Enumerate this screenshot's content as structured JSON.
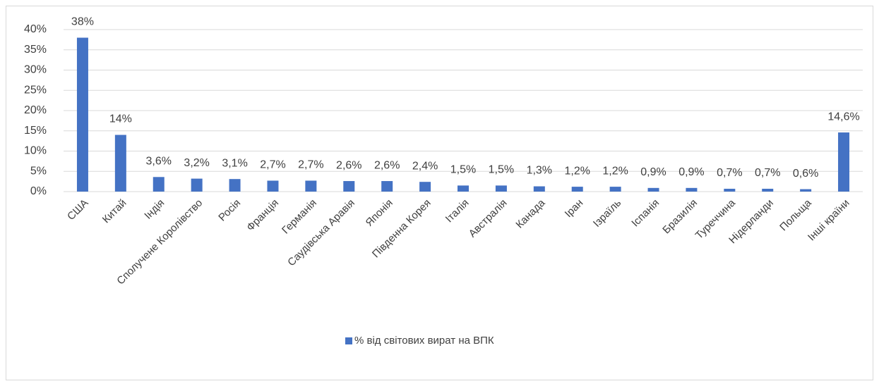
{
  "chart_data": {
    "type": "bar",
    "categories": [
      "США",
      "Китай",
      "Індія",
      "Сполучене Королівство",
      "Росія",
      "Франція",
      "Германія",
      "Саудівська Аравія",
      "Японія",
      "Південна Корея",
      "Італія",
      "Австралія",
      "Канада",
      "Іран",
      "Ізраїль",
      "Іспанія",
      "Бразилія",
      "Туреччина",
      "Нідерланди",
      "Польща",
      "Інші країни"
    ],
    "series": [
      {
        "name": "% від світових вират на ВПК",
        "color": "#4472c4",
        "values": [
          38,
          14,
          3.6,
          3.2,
          3.1,
          2.7,
          2.7,
          2.6,
          2.6,
          2.4,
          1.5,
          1.5,
          1.3,
          1.2,
          1.2,
          0.9,
          0.9,
          0.7,
          0.7,
          0.6,
          14.6
        ],
        "value_labels": [
          "38%",
          "14%",
          "3,6%",
          "3,2%",
          "3,1%",
          "2,7%",
          "2,7%",
          "2,6%",
          "2,6%",
          "2,4%",
          "1,5%",
          "1,5%",
          "1,3%",
          "1,2%",
          "1,2%",
          "0,9%",
          "0,9%",
          "0,7%",
          "0,7%",
          "0,6%",
          "14,6%"
        ]
      }
    ],
    "ylim": [
      0,
      40
    ],
    "yticks": [
      {
        "value": 0,
        "label": "0%"
      },
      {
        "value": 5,
        "label": "5%"
      },
      {
        "value": 10,
        "label": "10%"
      },
      {
        "value": 15,
        "label": "15%"
      },
      {
        "value": 20,
        "label": "20%"
      },
      {
        "value": 25,
        "label": "25%"
      },
      {
        "value": 30,
        "label": "30%"
      },
      {
        "value": 35,
        "label": "35%"
      },
      {
        "value": 40,
        "label": "40%"
      }
    ],
    "grid": true,
    "legend": "bottom"
  }
}
